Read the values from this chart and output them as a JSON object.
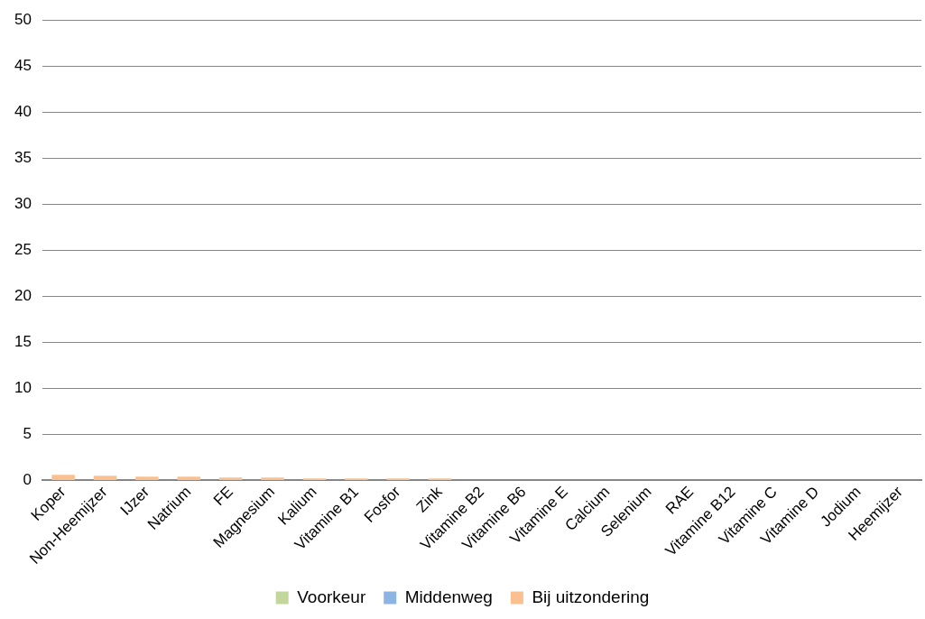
{
  "chart_data": {
    "type": "bar",
    "stacked": true,
    "categories": [
      "Koper",
      "Non-Heemijzer",
      "IJzer",
      "Natrium",
      "FE",
      "Magnesium",
      "Kalium",
      "Vitamine B1",
      "Fosfor",
      "Zink",
      "Vitamine B2",
      "Vitamine B6",
      "Vitamine E",
      "Calcium",
      "Selenium",
      "RAE",
      "Vitamine B12",
      "Vitamine C",
      "Vitamine D",
      "Jodium",
      "Heemijzer"
    ],
    "series": [
      {
        "name": "Voorkeur",
        "color": "#c3d69b",
        "values": [
          0,
          0,
          0,
          0,
          0,
          0,
          0,
          0,
          0,
          0,
          0,
          0,
          0,
          0,
          0,
          0,
          0,
          0,
          0,
          0,
          0
        ]
      },
      {
        "name": "Middenweg",
        "color": "#8eb4e3",
        "values": [
          0,
          0,
          0,
          0,
          0,
          0,
          0,
          0,
          0,
          0,
          0,
          0,
          0,
          0,
          0,
          0,
          0,
          0,
          0,
          0,
          0
        ]
      },
      {
        "name": "Bij uitzondering",
        "color": "#fac090",
        "values": [
          0.6,
          0.5,
          0.4,
          0.4,
          0.3,
          0.3,
          0.2,
          0.2,
          0.2,
          0.2,
          0,
          0,
          0,
          0,
          0,
          0,
          0,
          0,
          0,
          0,
          0
        ]
      }
    ],
    "ylim": [
      0,
      50
    ],
    "yticks": [
      0,
      5,
      10,
      15,
      20,
      25,
      30,
      35,
      40,
      45,
      50
    ],
    "grid": "y",
    "legend": "bottom"
  }
}
